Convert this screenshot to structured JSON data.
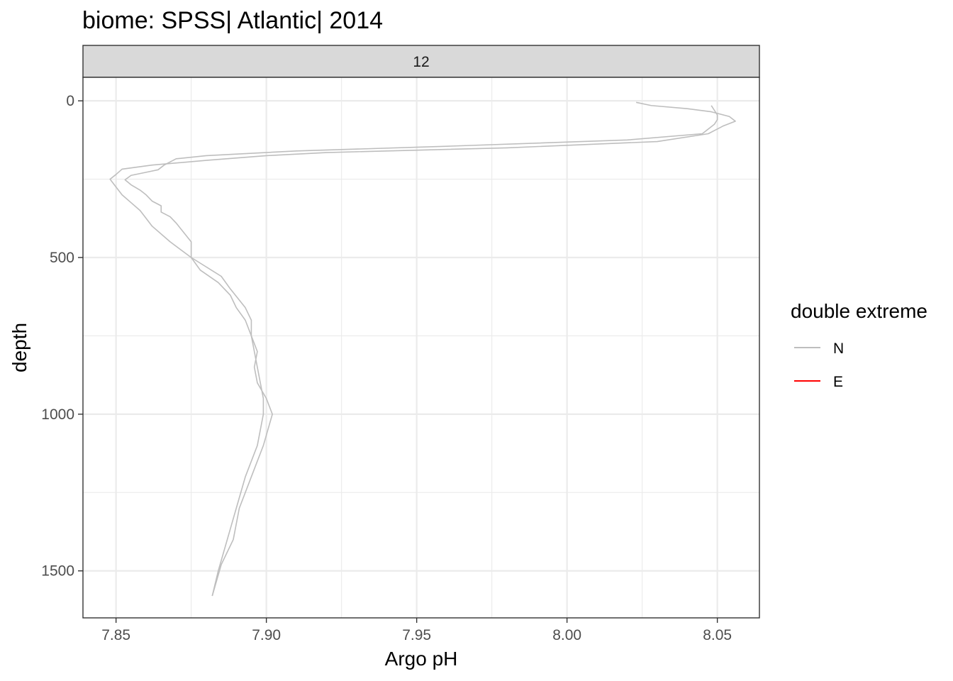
{
  "chart_data": {
    "type": "line",
    "title": "biome: SPSS| Atlantic| 2014",
    "facet_label": "12",
    "xlabel": "Argo pH",
    "ylabel": "depth",
    "xlim": [
      7.839,
      8.064
    ],
    "ylim": [
      -75,
      1650
    ],
    "y_reversed": true,
    "x_ticks": [
      7.85,
      7.9,
      7.95,
      8.0,
      8.05
    ],
    "x_tick_labels": [
      "7.85",
      "7.90",
      "7.95",
      "8.00",
      "8.05"
    ],
    "y_ticks": [
      0,
      500,
      1000,
      1500
    ],
    "y_tick_labels": [
      "0",
      "500",
      "1000",
      "1500"
    ],
    "grid": true,
    "legend": {
      "title": "double extreme",
      "position": "right",
      "entries": [
        {
          "label": "N",
          "color": "#bebebe"
        },
        {
          "label": "E",
          "color": "#ff0000"
        }
      ]
    },
    "series": [
      {
        "group": "N",
        "color": "#bebebe",
        "points": [
          [
            8.023,
            5
          ],
          [
            8.028,
            15
          ],
          [
            8.04,
            25
          ],
          [
            8.048,
            35
          ],
          [
            8.054,
            50
          ],
          [
            8.056,
            65
          ],
          [
            8.052,
            80
          ],
          [
            8.049,
            95
          ],
          [
            8.047,
            105
          ],
          [
            8.03,
            130
          ],
          [
            7.98,
            150
          ],
          [
            7.92,
            165
          ],
          [
            7.9,
            175
          ],
          [
            7.88,
            190
          ],
          [
            7.862,
            205
          ],
          [
            7.852,
            218
          ],
          [
            7.85,
            235
          ],
          [
            7.848,
            250
          ],
          [
            7.85,
            275
          ],
          [
            7.852,
            300
          ],
          [
            7.855,
            325
          ],
          [
            7.858,
            350
          ],
          [
            7.86,
            375
          ],
          [
            7.862,
            400
          ],
          [
            7.868,
            450
          ],
          [
            7.875,
            500
          ],
          [
            7.878,
            540
          ],
          [
            7.884,
            580
          ],
          [
            7.888,
            620
          ],
          [
            7.89,
            660
          ],
          [
            7.893,
            700
          ],
          [
            7.895,
            750
          ],
          [
            7.896,
            800
          ],
          [
            7.897,
            850
          ],
          [
            7.898,
            900
          ],
          [
            7.899,
            950
          ],
          [
            7.899,
            1000
          ],
          [
            7.897,
            1100
          ],
          [
            7.893,
            1200
          ],
          [
            7.89,
            1300
          ],
          [
            7.887,
            1400
          ],
          [
            7.884,
            1500
          ],
          [
            7.882,
            1580
          ]
        ]
      },
      {
        "group": "N",
        "color": "#bebebe",
        "points": [
          [
            8.048,
            15
          ],
          [
            8.049,
            30
          ],
          [
            8.05,
            45
          ],
          [
            8.05,
            60
          ],
          [
            8.049,
            75
          ],
          [
            8.047,
            90
          ],
          [
            8.045,
            105
          ],
          [
            8.02,
            125
          ],
          [
            7.96,
            145
          ],
          [
            7.91,
            160
          ],
          [
            7.88,
            175
          ],
          [
            7.87,
            185
          ],
          [
            7.866,
            205
          ],
          [
            7.864,
            220
          ],
          [
            7.86,
            228
          ],
          [
            7.855,
            238
          ],
          [
            7.853,
            252
          ],
          [
            7.855,
            268
          ],
          [
            7.858,
            285
          ],
          [
            7.86,
            300
          ],
          [
            7.862,
            320
          ],
          [
            7.865,
            335
          ],
          [
            7.865,
            355
          ],
          [
            7.868,
            370
          ],
          [
            7.87,
            390
          ],
          [
            7.875,
            450
          ],
          [
            7.875,
            500
          ],
          [
            7.88,
            530
          ],
          [
            7.885,
            560
          ],
          [
            7.888,
            600
          ],
          [
            7.893,
            660
          ],
          [
            7.895,
            700
          ],
          [
            7.895,
            750
          ],
          [
            7.897,
            800
          ],
          [
            7.896,
            850
          ],
          [
            7.897,
            900
          ],
          [
            7.9,
            950
          ],
          [
            7.902,
            1000
          ],
          [
            7.899,
            1100
          ],
          [
            7.895,
            1200
          ],
          [
            7.891,
            1300
          ],
          [
            7.889,
            1400
          ],
          [
            7.885,
            1480
          ],
          [
            7.882,
            1580
          ]
        ]
      }
    ]
  }
}
